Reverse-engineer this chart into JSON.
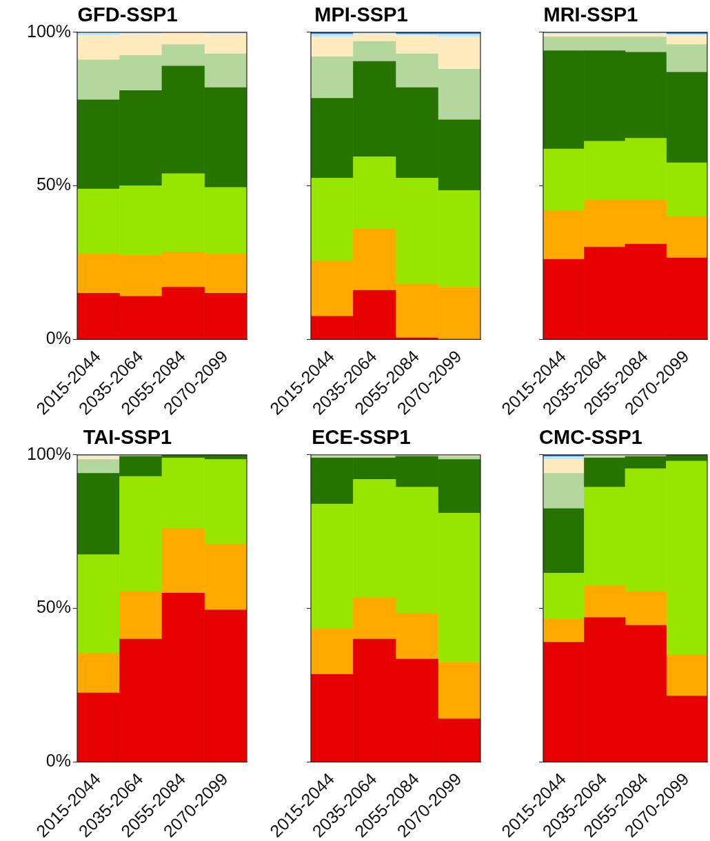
{
  "chart_data": [
    {
      "type": "bar",
      "title": "GFD-SSP1",
      "stacked": true,
      "categories": [
        "2015-2044",
        "2035-2064",
        "2055-2084",
        "2070-2099"
      ],
      "ylim": [
        0,
        100
      ],
      "yticks": [
        {
          "value": 0,
          "label": "0%"
        },
        {
          "value": 50,
          "label": "50%"
        },
        {
          "value": 100,
          "label": "100%"
        }
      ],
      "series": [
        {
          "color": "#e60000",
          "values": [
            15,
            14,
            17,
            15
          ]
        },
        {
          "color": "#ffaa00",
          "values": [
            13,
            13.5,
            11.5,
            13
          ]
        },
        {
          "color": "#98e600",
          "values": [
            21,
            22.5,
            25.5,
            21.5
          ]
        },
        {
          "color": "#267300",
          "values": [
            29,
            31,
            35,
            32.5
          ]
        },
        {
          "color": "#b4d79e",
          "values": [
            13,
            11.5,
            7,
            11
          ]
        },
        {
          "color": "#ffebbe",
          "values": [
            8,
            7,
            4,
            6.5
          ]
        },
        {
          "color": "#bee8ff",
          "values": [
            1,
            0.5,
            0,
            0.5
          ]
        }
      ]
    },
    {
      "type": "bar",
      "title": "MPI-SSP1",
      "stacked": true,
      "tick_labels": "x",
      "categories": [
        "2015-2044",
        "2035-2064",
        "2055-2084",
        "2070-2099"
      ],
      "ylim": [
        0,
        100
      ],
      "yticks": [
        {
          "value": 0,
          "label": null
        },
        {
          "value": 50,
          "label": null
        },
        {
          "value": 100,
          "label": null
        }
      ],
      "series": [
        {
          "color": "#e60000",
          "values": [
            7.5,
            16,
            0.5,
            0
          ]
        },
        {
          "color": "#ffaa00",
          "values": [
            18,
            20,
            17.5,
            17
          ]
        },
        {
          "color": "#98e600",
          "values": [
            27,
            23.5,
            34.5,
            31.5
          ]
        },
        {
          "color": "#267300",
          "values": [
            26,
            31,
            29.5,
            23
          ]
        },
        {
          "color": "#b4d79e",
          "values": [
            13.5,
            6.5,
            11,
            16.5
          ]
        },
        {
          "color": "#ffebbe",
          "values": [
            6.5,
            2.5,
            6,
            10.5
          ]
        },
        {
          "color": "#bee8ff",
          "values": [
            1,
            0.5,
            0.5,
            1
          ]
        },
        {
          "color": "#005ce6",
          "values": [
            0.5,
            0,
            0.5,
            0.5
          ]
        }
      ]
    },
    {
      "type": "bar",
      "title": "MRI-SSP1",
      "stacked": true,
      "tick_labels": "x",
      "categories": [
        "2015-2044",
        "2035-2064",
        "2055-2084",
        "2070-2099"
      ],
      "ylim": [
        0,
        100
      ],
      "yticks": [
        {
          "value": 0,
          "label": null
        },
        {
          "value": 50,
          "label": null
        },
        {
          "value": 100,
          "label": null
        }
      ],
      "series": [
        {
          "color": "#e60000",
          "values": [
            26,
            30,
            31,
            26.5
          ]
        },
        {
          "color": "#ffaa00",
          "values": [
            16,
            15.5,
            14.5,
            13.5
          ]
        },
        {
          "color": "#98e600",
          "values": [
            20,
            19,
            20,
            17.5
          ]
        },
        {
          "color": "#267300",
          "values": [
            32,
            29.5,
            28,
            29.5
          ]
        },
        {
          "color": "#b4d79e",
          "values": [
            4.5,
            4.5,
            5,
            9
          ]
        },
        {
          "color": "#ffebbe",
          "values": [
            1,
            1,
            1,
            3
          ]
        },
        {
          "color": "#bee8ff",
          "values": [
            0.5,
            0.5,
            0.5,
            0.5
          ]
        },
        {
          "color": "#005ce6",
          "values": [
            0,
            0,
            0,
            0.5
          ]
        }
      ]
    },
    {
      "type": "bar",
      "title": "TAI-SSP1",
      "stacked": true,
      "categories": [
        "2015-2044",
        "2035-2064",
        "2055-2084",
        "2070-2099"
      ],
      "ylim": [
        0,
        100
      ],
      "yticks": [
        {
          "value": 0,
          "label": "0%"
        },
        {
          "value": 50,
          "label": "50%"
        },
        {
          "value": 100,
          "label": "100%"
        }
      ],
      "series": [
        {
          "color": "#e60000",
          "values": [
            22.5,
            40,
            55,
            49.5
          ]
        },
        {
          "color": "#ffaa00",
          "values": [
            13,
            15.5,
            21,
            21.5
          ]
        },
        {
          "color": "#98e600",
          "values": [
            32,
            37.5,
            23,
            27.5
          ]
        },
        {
          "color": "#267300",
          "values": [
            26.5,
            6.5,
            1,
            1.5
          ]
        },
        {
          "color": "#b4d79e",
          "values": [
            4.5,
            0.5,
            0,
            0
          ]
        },
        {
          "color": "#ffebbe",
          "values": [
            1,
            0,
            0,
            0
          ]
        },
        {
          "color": "#bee8ff",
          "values": [
            0.5,
            0,
            0,
            0
          ]
        }
      ]
    },
    {
      "type": "bar",
      "title": "ECE-SSP1",
      "stacked": true,
      "tick_labels": "x",
      "categories": [
        "2015-2044",
        "2035-2064",
        "2055-2084",
        "2070-2099"
      ],
      "ylim": [
        0,
        100
      ],
      "yticks": [
        {
          "value": 0,
          "label": null
        },
        {
          "value": 50,
          "label": null
        },
        {
          "value": 100,
          "label": null
        }
      ],
      "series": [
        {
          "color": "#e60000",
          "values": [
            28.5,
            40,
            33.5,
            14
          ]
        },
        {
          "color": "#ffaa00",
          "values": [
            15,
            13.5,
            15,
            18.5
          ]
        },
        {
          "color": "#98e600",
          "values": [
            40.5,
            38.5,
            41,
            48.5
          ]
        },
        {
          "color": "#267300",
          "values": [
            15,
            7,
            10,
            17.5
          ]
        },
        {
          "color": "#b4d79e",
          "values": [
            0.5,
            0.5,
            0.5,
            1
          ]
        },
        {
          "color": "#ffebbe",
          "values": [
            0.5,
            0.5,
            0,
            0.5
          ]
        }
      ]
    },
    {
      "type": "bar",
      "title": "CMC-SSP1",
      "stacked": true,
      "tick_labels": "x",
      "categories": [
        "2015-2044",
        "2035-2064",
        "2055-2084",
        "2070-2099"
      ],
      "ylim": [
        0,
        100
      ],
      "yticks": [
        {
          "value": 0,
          "label": null
        },
        {
          "value": 50,
          "label": null
        },
        {
          "value": 100,
          "label": null
        }
      ],
      "series": [
        {
          "color": "#e60000",
          "values": [
            39,
            47,
            44.5,
            21.5
          ]
        },
        {
          "color": "#ffaa00",
          "values": [
            7.5,
            10.5,
            11,
            13.5
          ]
        },
        {
          "color": "#98e600",
          "values": [
            15,
            32,
            40,
            63
          ]
        },
        {
          "color": "#267300",
          "values": [
            21,
            9.5,
            4,
            2
          ]
        },
        {
          "color": "#b4d79e",
          "values": [
            11.5,
            0.5,
            0,
            0
          ]
        },
        {
          "color": "#ffebbe",
          "values": [
            4.5,
            0.5,
            0.5,
            0
          ]
        },
        {
          "color": "#bee8ff",
          "values": [
            1,
            0,
            0,
            0
          ]
        },
        {
          "color": "#005ce6",
          "values": [
            0.5,
            0,
            0,
            0
          ]
        }
      ]
    }
  ]
}
